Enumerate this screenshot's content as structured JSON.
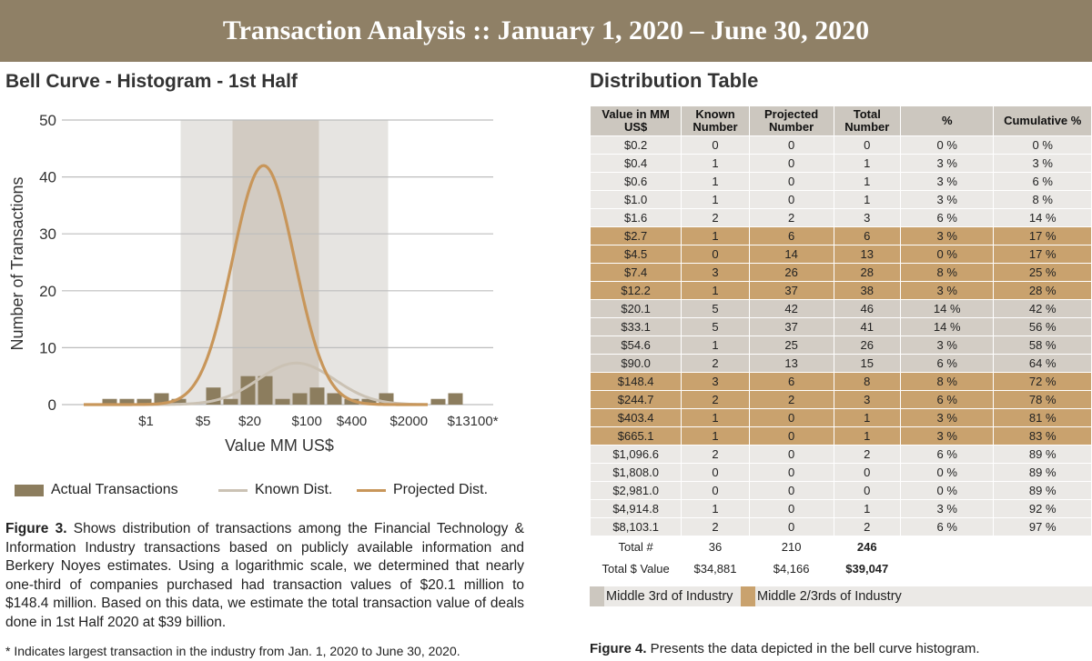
{
  "banner": {
    "title": "Transaction Analysis  ::  January 1, 2020 – June 30, 2020"
  },
  "left": {
    "title": "Bell Curve - Histogram - 1st Half",
    "legend": {
      "actual": "Actual Transactions",
      "known": "Known Dist.",
      "projected": "Projected Dist."
    },
    "caption_lead": "Figure 3.",
    "caption_text": " Shows distribution of transactions among the Financial Technology & Information Industry transactions based on publicly available information and Berkery Noyes estimates. Using a logarithmic scale, we determined that nearly one-third of companies purchased had transaction values of $20.1 million to $148.4 million. Based on this data, we estimate the total transaction value of deals done in 1st Half 2020 at $39 billion.",
    "footnote": "* Indicates largest transaction in the industry from Jan. 1, 2020 to June 30, 2020."
  },
  "colors": {
    "banner": "#8f8066",
    "bars": "#8c7d5e",
    "known": "#cbc2b4",
    "projected": "#c8965a",
    "band_outer": "#e6e4e1",
    "band_inner": "#d2cbc2",
    "middle_third": "#ccc7bf",
    "middle_two_thirds": "#c9a26e"
  },
  "chart_data": {
    "type": "bar",
    "title": "Bell Curve - Histogram - 1st Half",
    "xlabel": "Value MM US$",
    "ylabel": "Number of Transactions",
    "ylim": [
      0,
      50
    ],
    "yticks": [
      0,
      10,
      20,
      30,
      40,
      50
    ],
    "xtick_labels": [
      {
        "label": "$1",
        "bin": 4
      },
      {
        "label": "$5",
        "bin": 7.3
      },
      {
        "label": "$20",
        "bin": 10
      },
      {
        "label": "$100",
        "bin": 13.3
      },
      {
        "label": "$400",
        "bin": 15.9
      },
      {
        "label": "$2000",
        "bin": 19.2
      },
      {
        "label": "$13100*",
        "bin": 22.9
      }
    ],
    "series": [
      {
        "name": "Actual Transactions",
        "type": "bar",
        "values": [
          0,
          1,
          1,
          1,
          2,
          1,
          0,
          3,
          1,
          5,
          5,
          1,
          2,
          3,
          2,
          1,
          1,
          2,
          0,
          0,
          1,
          2
        ]
      },
      {
        "name": "Known Dist.",
        "type": "line",
        "peak": 7.3,
        "peak_bin": 12.3
      },
      {
        "name": "Projected Dist.",
        "type": "line",
        "peak": 42,
        "peak_bin": 10.4
      }
    ],
    "highlight_bands": [
      {
        "name": "Middle 2/3rds of Industry",
        "from_bin": 6,
        "to_bin": 18
      },
      {
        "name": "Middle 3rd of Industry",
        "from_bin": 9,
        "to_bin": 14
      }
    ],
    "grid": true
  },
  "table": {
    "title": "Distribution Table",
    "headers": [
      "Value in MM US$",
      "Known Number",
      "Projected Number",
      "Total Number",
      "%",
      "Cumulative %"
    ],
    "rows": [
      {
        "band": "plain",
        "cells": [
          "$0.2",
          "0",
          "0",
          "0",
          "0 %",
          "0 %"
        ]
      },
      {
        "band": "plain",
        "cells": [
          "$0.4",
          "1",
          "0",
          "1",
          "3 %",
          "3 %"
        ]
      },
      {
        "band": "plain",
        "cells": [
          "$0.6",
          "1",
          "0",
          "1",
          "3 %",
          "6 %"
        ]
      },
      {
        "band": "plain",
        "cells": [
          "$1.0",
          "1",
          "0",
          "1",
          "3 %",
          "8 %"
        ]
      },
      {
        "band": "plain",
        "cells": [
          "$1.6",
          "2",
          "2",
          "3",
          "6 %",
          "14 %"
        ]
      },
      {
        "band": "two",
        "cells": [
          "$2.7",
          "1",
          "6",
          "6",
          "3 %",
          "17 %"
        ]
      },
      {
        "band": "two",
        "cells": [
          "$4.5",
          "0",
          "14",
          "13",
          "0 %",
          "17 %"
        ]
      },
      {
        "band": "two",
        "cells": [
          "$7.4",
          "3",
          "26",
          "28",
          "8 %",
          "25 %"
        ]
      },
      {
        "band": "two",
        "cells": [
          "$12.2",
          "1",
          "37",
          "38",
          "3 %",
          "28 %"
        ]
      },
      {
        "band": "mid",
        "cells": [
          "$20.1",
          "5",
          "42",
          "46",
          "14 %",
          "42 %"
        ]
      },
      {
        "band": "mid",
        "cells": [
          "$33.1",
          "5",
          "37",
          "41",
          "14 %",
          "56 %"
        ]
      },
      {
        "band": "mid",
        "cells": [
          "$54.6",
          "1",
          "25",
          "26",
          "3 %",
          "58 %"
        ]
      },
      {
        "band": "mid",
        "cells": [
          "$90.0",
          "2",
          "13",
          "15",
          "6 %",
          "64 %"
        ]
      },
      {
        "band": "two",
        "cells": [
          "$148.4",
          "3",
          "6",
          "8",
          "8 %",
          "72 %"
        ]
      },
      {
        "band": "two",
        "cells": [
          "$244.7",
          "2",
          "2",
          "3",
          "6 %",
          "78 %"
        ]
      },
      {
        "band": "two",
        "cells": [
          "$403.4",
          "1",
          "0",
          "1",
          "3 %",
          "81 %"
        ]
      },
      {
        "band": "two",
        "cells": [
          "$665.1",
          "1",
          "0",
          "1",
          "3 %",
          "83 %"
        ]
      },
      {
        "band": "plain",
        "cells": [
          "$1,096.6",
          "2",
          "0",
          "2",
          "6 %",
          "89 %"
        ]
      },
      {
        "band": "plain",
        "cells": [
          "$1,808.0",
          "0",
          "0",
          "0",
          "0 %",
          "89 %"
        ]
      },
      {
        "band": "plain",
        "cells": [
          "$2,981.0",
          "0",
          "0",
          "0",
          "0 %",
          "89 %"
        ]
      },
      {
        "band": "plain",
        "cells": [
          "$4,914.8",
          "1",
          "0",
          "1",
          "3 %",
          "92 %"
        ]
      },
      {
        "band": "plain",
        "cells": [
          "$8,103.1",
          "2",
          "0",
          "2",
          "6 %",
          "97 %"
        ]
      }
    ],
    "totals": [
      {
        "label": "Total #",
        "known": "36",
        "projected": "210",
        "total": "246"
      },
      {
        "label": "Total $ Value",
        "known": "$34,881",
        "projected": "$4,166",
        "total": "$39,047"
      }
    ],
    "legend": {
      "middle_third": "Middle 3rd of Industry",
      "middle_two_thirds": "Middle 2/3rds of Industry"
    },
    "caption_lead": "Figure 4.",
    "caption_text": " Presents the data depicted in the bell curve histogram."
  }
}
